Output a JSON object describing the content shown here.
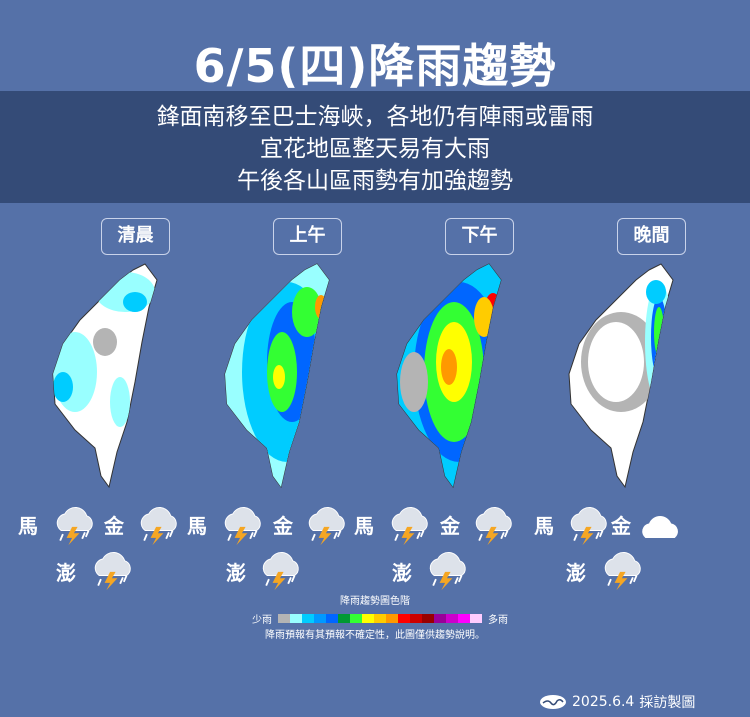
{
  "title": "6/5(四)降雨趨勢",
  "summary": [
    "鋒面南移至巴士海峽，各地仍有陣雨或雷雨",
    "宜花地區整天易有大雨",
    "午後各山區雨勢有加強趨勢"
  ],
  "panels": [
    {
      "period": "清晨",
      "matsu": "馬",
      "kinmen": "金",
      "penghu": "澎",
      "matsu_icon": "cloud-lightning-icon",
      "kinmen_icon": "cloud-lightning-icon",
      "penghu_icon": "cloud-lightning-icon"
    },
    {
      "period": "上午",
      "matsu": "馬",
      "kinmen": "金",
      "penghu": "澎",
      "matsu_icon": "cloud-lightning-icon",
      "kinmen_icon": "cloud-lightning-icon",
      "penghu_icon": "cloud-lightning-icon"
    },
    {
      "period": "下午",
      "matsu": "馬",
      "kinmen": "金",
      "penghu": "澎",
      "matsu_icon": "cloud-lightning-icon",
      "kinmen_icon": "cloud-lightning-icon",
      "penghu_icon": "cloud-lightning-icon"
    },
    {
      "period": "晚間",
      "matsu": "馬",
      "kinmen": "金",
      "penghu": "澎",
      "matsu_icon": "cloud-lightning-icon",
      "kinmen_icon": "cloud-icon",
      "penghu_icon": "cloud-lightning-icon"
    }
  ],
  "legend": {
    "title": "降雨趨勢圖色階",
    "low": "少雨",
    "high": "多雨",
    "colors": [
      "#b4b4b4",
      "#99ffff",
      "#00ccff",
      "#0099ff",
      "#0066ff",
      "#009933",
      "#33ff33",
      "#ffff00",
      "#ffcc00",
      "#ff9900",
      "#ff0000",
      "#cc0000",
      "#990000",
      "#990099",
      "#cc00cc",
      "#ff00ff",
      "#ffccff"
    ]
  },
  "disclaimer": "降雨預報有其預報不確定性，此圖僅供趨勢說明。",
  "footer": {
    "date": "2025.6.4",
    "credit": "採訪製圖"
  }
}
